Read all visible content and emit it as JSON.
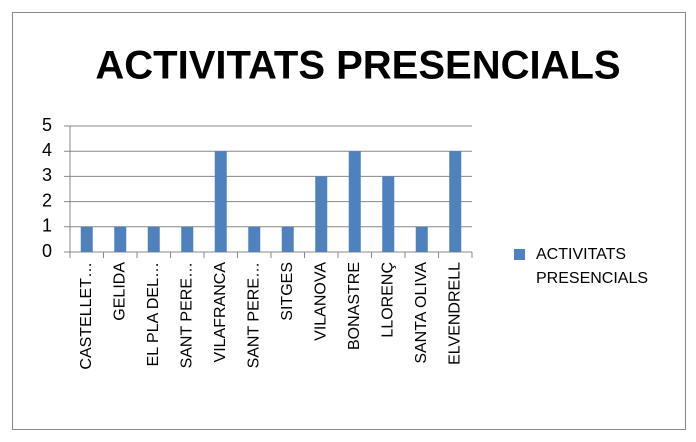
{
  "chart_data": {
    "type": "bar",
    "title": "ACTIVITATS PRESENCIALS",
    "categories": [
      "CASTELLET…",
      "GELIDA",
      "EL PLA DEL…",
      "SANT PERE…",
      "VILAFRANCA",
      "SANT PERE…",
      "SITGES",
      "VILANOVA",
      "BONASTRE",
      "LLORENÇ",
      "SANTA OLIVA",
      "ELVENDRELL"
    ],
    "series": [
      {
        "name": "ACTIVITATS PRESENCIALS",
        "color": "#4f81bd",
        "values": [
          1,
          1,
          1,
          1,
          4,
          1,
          1,
          3,
          4,
          3,
          1,
          4
        ]
      }
    ],
    "ylim": [
      0,
      5
    ],
    "yticks": [
      0,
      1,
      2,
      3,
      4,
      5
    ],
    "grid": true,
    "legend": "right"
  }
}
